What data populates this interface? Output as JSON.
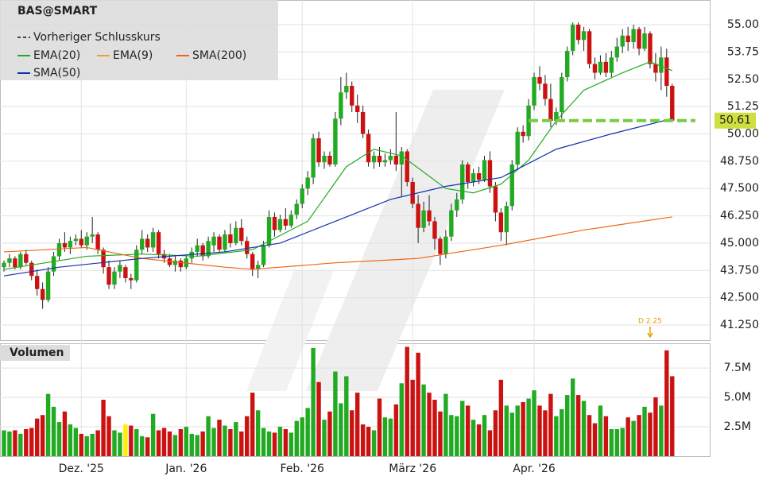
{
  "chart_data": {
    "type": "candlestick",
    "title": "BAS@SMART",
    "legend": [
      "Vorheriger Schlusskurs"
    ],
    "xlim": [
      -0.72,
      127.8
    ],
    "xticks": [
      {
        "value": 14,
        "label": "Dez. '25"
      },
      {
        "value": 33,
        "label": "Jan. '26"
      },
      {
        "value": 54,
        "label": "Feb. '26"
      },
      {
        "value": 74,
        "label": "März '26"
      },
      {
        "value": 96,
        "label": "Apr. '26"
      }
    ],
    "ylim": [
      40.56,
      56.13
    ],
    "yticks": [
      {
        "value": 41.25,
        "label": "41.250"
      },
      {
        "value": 42.5,
        "label": "42.500"
      },
      {
        "value": 43.75,
        "label": "43.750"
      },
      {
        "value": 45,
        "label": "45.000"
      },
      {
        "value": 46.25,
        "label": "46.250"
      },
      {
        "value": 47.5,
        "label": "47.500"
      },
      {
        "value": 48.75,
        "label": "48.750"
      },
      {
        "value": 50,
        "label": "50.00"
      },
      {
        "value": 51.25,
        "label": "51.25"
      },
      {
        "value": 52.5,
        "label": "52.50"
      },
      {
        "value": 53.75,
        "label": "53.75"
      },
      {
        "value": 55,
        "label": "55.00"
      }
    ],
    "up_color": "#22aa22",
    "down_color": "#cc1111",
    "ohlc": [
      [
        43.9,
        44.2,
        43.7,
        44.1
      ],
      [
        44.1,
        44.5,
        43.9,
        44.3
      ],
      [
        44.3,
        44.4,
        43.8,
        43.9
      ],
      [
        43.9,
        44.6,
        43.8,
        44.5
      ],
      [
        44.5,
        44.7,
        44.0,
        44.1
      ],
      [
        44.1,
        44.2,
        43.3,
        43.5
      ],
      [
        43.5,
        43.8,
        42.6,
        42.9
      ],
      [
        42.9,
        43.2,
        42.0,
        42.4
      ],
      [
        42.4,
        43.9,
        42.3,
        43.7
      ],
      [
        43.7,
        44.6,
        43.5,
        44.4
      ],
      [
        44.4,
        45.2,
        44.2,
        45.0
      ],
      [
        45.0,
        45.5,
        44.6,
        44.8
      ],
      [
        44.8,
        45.3,
        44.5,
        45.1
      ],
      [
        45.1,
        45.4,
        44.9,
        45.2
      ],
      [
        45.2,
        45.6,
        44.8,
        44.9
      ],
      [
        44.9,
        45.5,
        44.7,
        45.3
      ],
      [
        45.3,
        46.2,
        45.0,
        45.4
      ],
      [
        45.4,
        45.5,
        44.5,
        44.7
      ],
      [
        44.7,
        44.8,
        43.6,
        43.9
      ],
      [
        43.9,
        44.2,
        42.9,
        43.1
      ],
      [
        43.1,
        43.9,
        42.9,
        43.7
      ],
      [
        43.7,
        44.2,
        43.4,
        44.0
      ],
      [
        43.9,
        44.0,
        43.2,
        43.4
      ],
      [
        43.4,
        43.6,
        42.9,
        43.3
      ],
      [
        43.3,
        44.9,
        43.2,
        44.7
      ],
      [
        44.7,
        45.6,
        44.5,
        45.2
      ],
      [
        45.2,
        45.4,
        44.6,
        44.8
      ],
      [
        44.8,
        45.7,
        44.6,
        45.5
      ],
      [
        45.5,
        45.6,
        44.3,
        44.5
      ],
      [
        44.5,
        44.7,
        44.1,
        44.3
      ],
      [
        44.3,
        44.5,
        43.9,
        44.0
      ],
      [
        44.0,
        44.4,
        43.7,
        44.2
      ],
      [
        44.2,
        44.3,
        43.7,
        43.9
      ],
      [
        43.9,
        44.4,
        43.8,
        44.3
      ],
      [
        44.3,
        44.8,
        44.1,
        44.6
      ],
      [
        44.6,
        45.2,
        44.4,
        44.9
      ],
      [
        44.9,
        45.0,
        44.2,
        44.4
      ],
      [
        44.4,
        45.3,
        44.3,
        45.1
      ],
      [
        44.9,
        45.5,
        44.6,
        45.3
      ],
      [
        45.3,
        45.4,
        44.6,
        44.7
      ],
      [
        44.7,
        45.6,
        44.6,
        45.4
      ],
      [
        45.4,
        45.9,
        44.8,
        45.0
      ],
      [
        45.0,
        46.0,
        44.9,
        45.7
      ],
      [
        45.7,
        46.1,
        44.9,
        45.1
      ],
      [
        45.1,
        45.3,
        44.3,
        44.5
      ],
      [
        44.5,
        44.6,
        43.5,
        43.8
      ],
      [
        43.8,
        44.2,
        43.4,
        44.0
      ],
      [
        44.0,
        45.1,
        43.9,
        44.9
      ],
      [
        44.9,
        46.5,
        44.8,
        46.2
      ],
      [
        46.2,
        46.4,
        45.3,
        45.6
      ],
      [
        45.6,
        46.3,
        45.5,
        46.1
      ],
      [
        46.1,
        46.6,
        45.6,
        45.8
      ],
      [
        45.8,
        46.5,
        45.7,
        46.3
      ],
      [
        46.3,
        47.0,
        46.1,
        46.8
      ],
      [
        46.8,
        47.7,
        46.6,
        47.5
      ],
      [
        47.5,
        48.3,
        47.2,
        48.0
      ],
      [
        48.0,
        50.0,
        47.7,
        49.8
      ],
      [
        49.8,
        50.1,
        48.5,
        48.7
      ],
      [
        48.7,
        49.2,
        48.4,
        49.0
      ],
      [
        49.0,
        49.2,
        48.5,
        48.6
      ],
      [
        48.6,
        51.0,
        48.5,
        50.7
      ],
      [
        50.7,
        52.6,
        50.4,
        51.9
      ],
      [
        51.9,
        52.8,
        51.6,
        52.2
      ],
      [
        52.2,
        52.4,
        51.0,
        51.3
      ],
      [
        51.3,
        51.8,
        50.5,
        51.0
      ],
      [
        51.0,
        51.3,
        49.8,
        50.0
      ],
      [
        50.0,
        50.2,
        48.5,
        48.7
      ],
      [
        48.7,
        49.2,
        48.4,
        49.0
      ],
      [
        49.0,
        49.4,
        48.5,
        48.7
      ],
      [
        48.7,
        49.1,
        48.5,
        48.8
      ],
      [
        48.8,
        49.3,
        48.6,
        49.0
      ],
      [
        49.0,
        51.0,
        48.3,
        48.6
      ],
      [
        48.6,
        49.4,
        47.1,
        49.2
      ],
      [
        49.2,
        49.3,
        47.6,
        47.8
      ],
      [
        47.8,
        48.0,
        46.6,
        46.8
      ],
      [
        46.8,
        47.2,
        45.0,
        45.7
      ],
      [
        45.7,
        46.9,
        45.5,
        46.5
      ],
      [
        46.5,
        47.2,
        45.8,
        46.0
      ],
      [
        46.0,
        46.2,
        44.7,
        45.2
      ],
      [
        45.2,
        45.3,
        44.0,
        44.5
      ],
      [
        44.5,
        45.6,
        44.3,
        45.3
      ],
      [
        45.3,
        46.8,
        45.1,
        46.5
      ],
      [
        46.5,
        47.3,
        46.2,
        47.0
      ],
      [
        47.0,
        48.8,
        46.8,
        48.6
      ],
      [
        48.6,
        48.7,
        47.5,
        47.8
      ],
      [
        47.8,
        48.4,
        47.6,
        48.2
      ],
      [
        48.2,
        48.5,
        47.7,
        47.9
      ],
      [
        47.9,
        49.0,
        47.8,
        48.8
      ],
      [
        48.8,
        49.2,
        47.3,
        47.6
      ],
      [
        47.6,
        47.8,
        46.0,
        46.4
      ],
      [
        46.4,
        46.6,
        45.1,
        45.5
      ],
      [
        45.5,
        46.9,
        44.9,
        46.7
      ],
      [
        46.7,
        48.8,
        46.5,
        48.6
      ],
      [
        48.6,
        50.3,
        48.4,
        50.1
      ],
      [
        50.1,
        50.4,
        49.6,
        49.9
      ],
      [
        49.9,
        51.6,
        49.7,
        51.3
      ],
      [
        51.3,
        52.8,
        51.1,
        52.6
      ],
      [
        52.6,
        53.1,
        52.0,
        52.3
      ],
      [
        52.3,
        52.7,
        51.3,
        51.6
      ],
      [
        51.6,
        52.3,
        50.3,
        50.6
      ],
      [
        50.6,
        51.2,
        50.4,
        51.0
      ],
      [
        51.0,
        52.8,
        50.7,
        52.6
      ],
      [
        52.6,
        54.0,
        52.4,
        53.8
      ],
      [
        53.8,
        55.1,
        53.6,
        55.0
      ],
      [
        55.0,
        55.1,
        54.1,
        54.3
      ],
      [
        54.3,
        54.9,
        53.8,
        54.7
      ],
      [
        54.7,
        54.8,
        53.0,
        53.2
      ],
      [
        53.2,
        53.5,
        52.5,
        52.8
      ],
      [
        52.8,
        53.6,
        52.7,
        53.3
      ],
      [
        53.3,
        53.7,
        52.6,
        52.8
      ],
      [
        52.8,
        53.8,
        52.6,
        53.5
      ],
      [
        53.5,
        54.4,
        53.3,
        54.0
      ],
      [
        54.0,
        54.8,
        53.7,
        54.5
      ],
      [
        54.5,
        54.9,
        53.8,
        54.2
      ],
      [
        54.2,
        55.0,
        53.9,
        54.8
      ],
      [
        54.8,
        54.9,
        53.6,
        53.9
      ],
      [
        53.9,
        54.9,
        53.8,
        54.6
      ],
      [
        54.6,
        54.7,
        53.0,
        53.2
      ],
      [
        53.2,
        53.7,
        52.4,
        52.8
      ],
      [
        52.8,
        54.0,
        52.0,
        53.5
      ],
      [
        53.5,
        53.9,
        51.7,
        52.2
      ],
      [
        52.2,
        52.3,
        50.6,
        50.61
      ]
    ],
    "lines": [
      {
        "name": "EMA(20)",
        "color": "#22aa22",
        "points": [
          [
            0,
            43.8
          ],
          [
            15,
            44.4
          ],
          [
            25,
            44.5
          ],
          [
            35,
            44.4
          ],
          [
            45,
            44.7
          ],
          [
            55,
            46.0
          ],
          [
            62,
            48.5
          ],
          [
            67,
            49.3
          ],
          [
            72,
            49.0
          ],
          [
            80,
            47.5
          ],
          [
            85,
            47.3
          ],
          [
            90,
            47.7
          ],
          [
            95,
            48.8
          ],
          [
            100,
            50.6
          ],
          [
            105,
            52.0
          ],
          [
            112,
            52.8
          ],
          [
            117,
            53.3
          ],
          [
            121,
            52.9
          ]
        ]
      },
      {
        "name": "EMA(9)",
        "color": "#f0a030",
        "points": []
      },
      {
        "name": "SMA(200)",
        "color": "#ee6611",
        "points": [
          [
            0,
            44.6
          ],
          [
            15,
            44.8
          ],
          [
            25,
            44.3
          ],
          [
            40,
            43.9
          ],
          [
            45,
            43.8
          ],
          [
            60,
            44.1
          ],
          [
            75,
            44.3
          ],
          [
            90,
            44.9
          ],
          [
            105,
            45.6
          ],
          [
            121,
            46.2
          ]
        ]
      },
      {
        "name": "SMA(50)",
        "color": "#1133aa",
        "points": [
          [
            0,
            43.5
          ],
          [
            10,
            43.9
          ],
          [
            25,
            44.3
          ],
          [
            40,
            44.6
          ],
          [
            50,
            45.0
          ],
          [
            60,
            46.0
          ],
          [
            70,
            47.0
          ],
          [
            80,
            47.6
          ],
          [
            90,
            48.0
          ],
          [
            100,
            49.3
          ],
          [
            110,
            50.0
          ],
          [
            121,
            50.7
          ]
        ]
      }
    ],
    "last_price": 50.61,
    "dividend": {
      "index": 117,
      "label": "D 2.25"
    },
    "volume": {
      "title": "Volumen",
      "ylim": [
        0,
        9600000
      ],
      "yticks": [
        {
          "value": 2500000,
          "label": "2.5M"
        },
        {
          "value": 5000000,
          "label": "5.0M"
        },
        {
          "value": 7500000,
          "label": "7.5M"
        }
      ],
      "highlight": {
        "index": 22,
        "color": "#ffee00"
      },
      "values": [
        2200000.0,
        2100000.0,
        2200000.0,
        1900000.0,
        2300000.0,
        2400000.0,
        3200000.0,
        3500000.0,
        5300000.0,
        4200000.0,
        2900000.0,
        3800000.0,
        2700000.0,
        2400000.0,
        1900000.0,
        1700000.0,
        1900000.0,
        2200000.0,
        4800000.0,
        3400000.0,
        2200000.0,
        2000000.0,
        2700000.0,
        2600000.0,
        2300000.0,
        1700000.0,
        1600000.0,
        3600000.0,
        2200000.0,
        2400000.0,
        2100000.0,
        1800000.0,
        2300000.0,
        2500000.0,
        1900000.0,
        1800000.0,
        2100000.0,
        3400000.0,
        2400000.0,
        3100000.0,
        2600000.0,
        2300000.0,
        2900000.0,
        2100000.0,
        3400000.0,
        5400000.0,
        3900000.0,
        2400000.0,
        2100000.0,
        2000000.0,
        2500000.0,
        2300000.0,
        2000000.0,
        3000000.0,
        3300000.0,
        4100000.0,
        9200000.0,
        6300000.0,
        3100000.0,
        3800000.0,
        7200000.0,
        4500000.0,
        6800000.0,
        3900000.0,
        5400000.0,
        2700000.0,
        2500000.0,
        2200000.0,
        4900000.0,
        3300000.0,
        3200000.0,
        4400000.0,
        6200000.0,
        9300000.0,
        6500000.0,
        8800000.0,
        6100000.0,
        5400000.0,
        4800000.0,
        3800000.0,
        5300000.0,
        3500000.0,
        3400000.0,
        4700000.0,
        4300000.0,
        3100000.0,
        2700000.0,
        3500000.0,
        2200000.0,
        3900000.0,
        6500000.0,
        4300000.0,
        3700000.0,
        4300000.0,
        4600000.0,
        4900000.0,
        5600000.0,
        4300000.0,
        3900000.0,
        5300000.0,
        3400000.0,
        4000000.0,
        5200000.0,
        6600000.0,
        5200000.0,
        4700000.0,
        3500000.0,
        2800000.0,
        4300000.0,
        3400000.0,
        2300000.0,
        2300000.0,
        2400000.0,
        3300000.0,
        3000000.0,
        3500000.0,
        4200000.0,
        3700000.0,
        5000000.0,
        4300000.0,
        9000000.0,
        6800000.0
      ]
    }
  }
}
